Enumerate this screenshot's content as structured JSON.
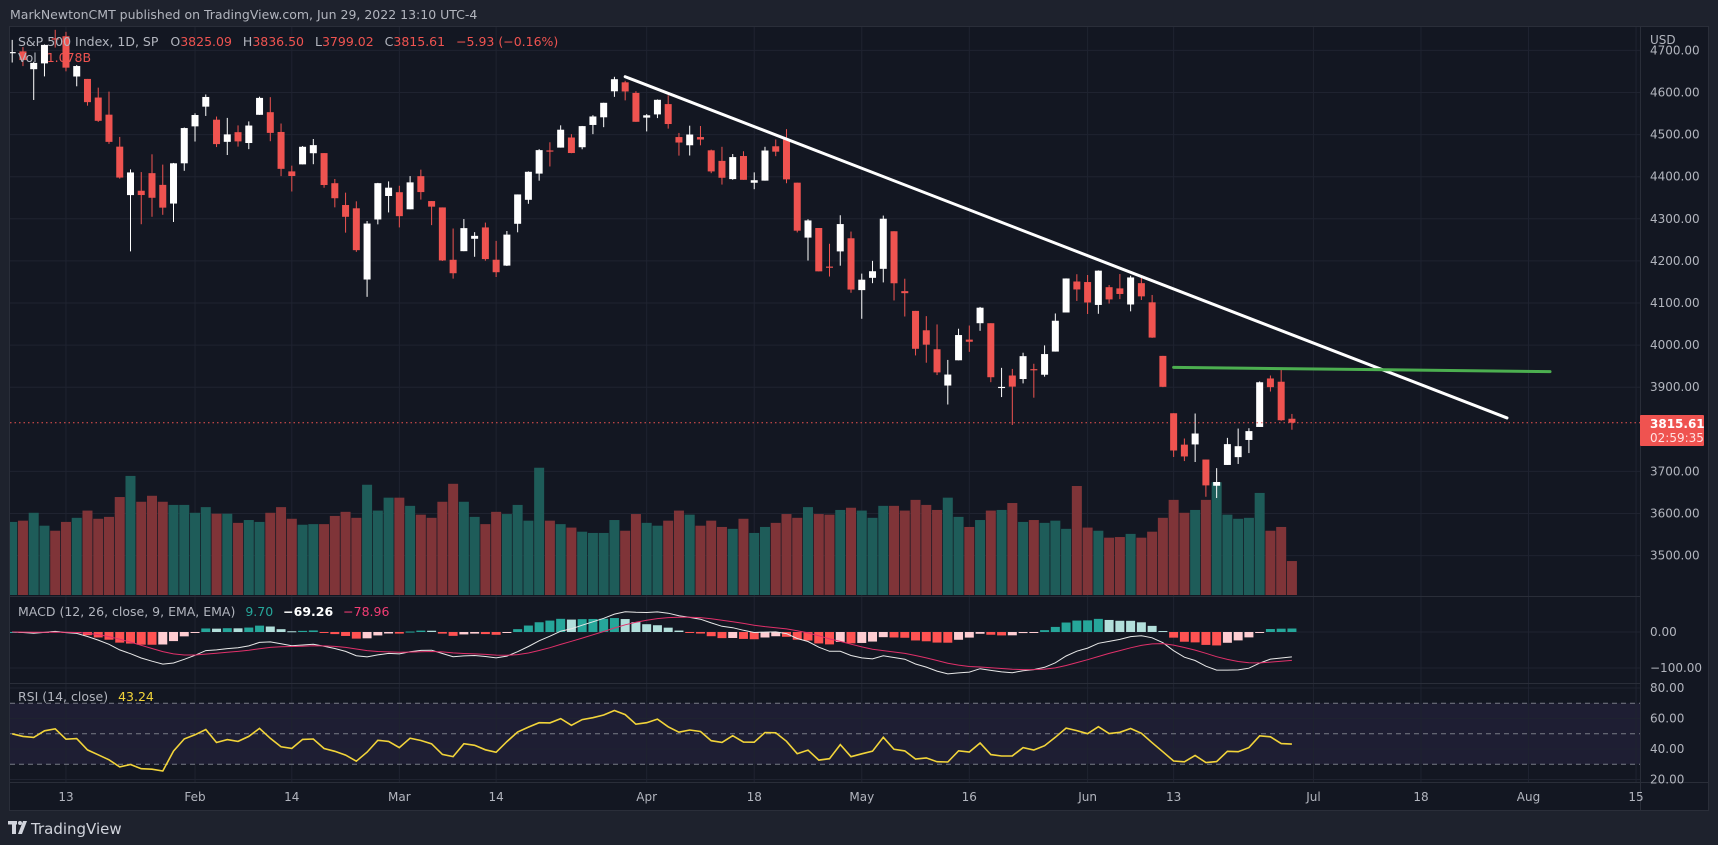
{
  "header": {
    "publisher_line": "MarkNewtonCMT published on TradingView.com, Jun 29, 2022 13:10 UTC-4"
  },
  "legend": {
    "symbol": "S&P 500 Index, 1D, SP",
    "o_label": "O",
    "open": "3825.09",
    "h_label": "H",
    "high": "3836.50",
    "l_label": "L",
    "low": "3799.02",
    "c_label": "C",
    "close": "3815.61",
    "change": "−5.93 (−0.16%)",
    "vol_label": "Vol",
    "vol_value": "1.078B"
  },
  "macd_legend": {
    "title": "MACD (12, 26, close, 9, EMA, EMA)",
    "hist": "9.70",
    "macd": "−69.26",
    "signal": "−78.96"
  },
  "rsi_legend": {
    "title": "RSI (14, close)",
    "value": "43.24"
  },
  "price_axis": {
    "currency": "USD",
    "labels": [
      "4700.00",
      "4600.00",
      "4500.00",
      "4400.00",
      "4300.00",
      "4200.00",
      "4100.00",
      "4000.00",
      "3900.00",
      "3700.00",
      "3600.00",
      "3500.00"
    ],
    "last_price": "3815.61",
    "countdown": "02:59:35"
  },
  "macd_axis": {
    "labels": [
      "0.00",
      "−100.00"
    ]
  },
  "rsi_axis": {
    "labels": [
      "80.00",
      "60.00",
      "40.00",
      "20.00"
    ]
  },
  "time_axis": {
    "ticks": [
      {
        "label": "13",
        "date": "2022-01-13"
      },
      {
        "label": "Feb",
        "date": "2022-02-01"
      },
      {
        "label": "14",
        "date": "2022-02-14"
      },
      {
        "label": "Mar",
        "date": "2022-03-01"
      },
      {
        "label": "14",
        "date": "2022-03-14"
      },
      {
        "label": "Apr",
        "date": "2022-04-01"
      },
      {
        "label": "18",
        "date": "2022-04-18"
      },
      {
        "label": "May",
        "date": "2022-05-02"
      },
      {
        "label": "16",
        "date": "2022-05-16"
      },
      {
        "label": "Jun",
        "date": "2022-06-01"
      },
      {
        "label": "13",
        "date": "2022-06-13"
      },
      {
        "label": "Jul",
        "date": "2022-07-01"
      },
      {
        "label": "18",
        "date": "2022-07-18"
      },
      {
        "label": "Aug",
        "date": "2022-08-01"
      },
      {
        "label": "15",
        "date": "2022-08-15"
      }
    ]
  },
  "footer": {
    "brand": "TradingView"
  },
  "colors": {
    "background": "#131722",
    "frame": "#1e222d",
    "grid": "#1f2330",
    "up_candle": "#ffffff",
    "down_candle": "#ef5350",
    "up_volume": "#1e5c59",
    "down_volume": "#7f3438",
    "macd_line": "#e8e8e8",
    "signal_line": "#e0306a",
    "hist_up_strong": "#26a69a",
    "hist_up_weak": "#b2dfdb",
    "hist_down_strong": "#ff5252",
    "hist_down_weak": "#ffcdd2",
    "rsi_line": "#f2d43a",
    "rsi_band": "#1e1e33",
    "trendline": "#ffffff",
    "support_line": "#4caf50",
    "last_price": "#ef5350"
  },
  "chart_data": {
    "type": "candlestick",
    "title": "S&P 500 Index, 1D, SP",
    "ylabel": "USD",
    "ylim": [
      3450,
      4760
    ],
    "volume_unit": "B",
    "grid": true,
    "columns": [
      "date",
      "open",
      "high",
      "low",
      "close",
      "volume"
    ],
    "ohlcv": [
      [
        "2022-01-06",
        4693.39,
        4725.01,
        4671.26,
        4696.05,
        2.32
      ],
      [
        "2022-01-07",
        4697.66,
        4707.95,
        4662.74,
        4677.03,
        2.36
      ],
      [
        "2022-01-10",
        4655.34,
        4673.02,
        4582.24,
        4670.29,
        2.61
      ],
      [
        "2022-01-11",
        4669.14,
        4714.13,
        4638.27,
        4713.07,
        2.2
      ],
      [
        "2022-01-12",
        4728.59,
        4748.83,
        4706.71,
        4726.35,
        2.04
      ],
      [
        "2022-01-13",
        4733.56,
        4744.13,
        4650.29,
        4659.03,
        2.32
      ],
      [
        "2022-01-14",
        4637.99,
        4665.13,
        4614.75,
        4662.85,
        2.45
      ],
      [
        "2022-01-18",
        4632.24,
        4632.24,
        4568.7,
        4577.11,
        2.68
      ],
      [
        "2022-01-19",
        4588.03,
        4611.55,
        4530.2,
        4532.76,
        2.42
      ],
      [
        "2022-01-20",
        4547.35,
        4602.11,
        4477.95,
        4482.73,
        2.48
      ],
      [
        "2022-01-21",
        4471.38,
        4494.52,
        4395.34,
        4397.94,
        3.11
      ],
      [
        "2022-01-24",
        4356.32,
        4417.35,
        4222.62,
        4410.13,
        3.78
      ],
      [
        "2022-01-25",
        4366.64,
        4411.01,
        4287.11,
        4356.45,
        2.96
      ],
      [
        "2022-01-26",
        4408.43,
        4453.23,
        4304.8,
        4349.93,
        3.15
      ],
      [
        "2022-01-27",
        4380.58,
        4428.74,
        4309.5,
        4326.51,
        2.96
      ],
      [
        "2022-01-28",
        4336.19,
        4432.72,
        4292.46,
        4431.85,
        2.86
      ],
      [
        "2022-01-31",
        4431.79,
        4516.89,
        4414.02,
        4515.55,
        2.86
      ],
      [
        "2022-02-01",
        4519.57,
        4550.49,
        4483.53,
        4546.54,
        2.61
      ],
      [
        "2022-02-02",
        4566.39,
        4595.31,
        4544.32,
        4589.38,
        2.79
      ],
      [
        "2022-02-03",
        4535.41,
        4542.88,
        4470.39,
        4477.44,
        2.58
      ],
      [
        "2022-02-04",
        4482.79,
        4539.66,
        4451.5,
        4500.53,
        2.58
      ],
      [
        "2022-02-07",
        4505.75,
        4521.86,
        4471.47,
        4483.87,
        2.29
      ],
      [
        "2022-02-08",
        4480.02,
        4531.32,
        4465.4,
        4521.54,
        2.38
      ],
      [
        "2022-02-09",
        4547.0,
        4590.03,
        4547.0,
        4587.18,
        2.32
      ],
      [
        "2022-02-10",
        4553.24,
        4588.92,
        4484.31,
        4504.08,
        2.61
      ],
      [
        "2022-02-11",
        4506.27,
        4526.33,
        4401.41,
        4418.64,
        2.79
      ],
      [
        "2022-02-14",
        4412.61,
        4426.22,
        4364.84,
        4401.67,
        2.42
      ],
      [
        "2022-02-15",
        4429.28,
        4472.77,
        4429.28,
        4471.07,
        2.23
      ],
      [
        "2022-02-16",
        4455.75,
        4489.55,
        4429.68,
        4475.01,
        2.25
      ],
      [
        "2022-02-17",
        4456.06,
        4456.06,
        4373.81,
        4380.26,
        2.25
      ],
      [
        "2022-02-18",
        4384.57,
        4394.6,
        4327.22,
        4348.87,
        2.51
      ],
      [
        "2022-02-22",
        4332.74,
        4362.12,
        4267.11,
        4304.76,
        2.64
      ],
      [
        "2022-02-23",
        4324.93,
        4341.51,
        4221.51,
        4225.5,
        2.45
      ],
      [
        "2022-02-24",
        4155.77,
        4294.73,
        4114.65,
        4288.7,
        3.5
      ],
      [
        "2022-02-25",
        4298.38,
        4385.34,
        4286.83,
        4384.65,
        2.68
      ],
      [
        "2022-02-28",
        4354.17,
        4388.84,
        4315.12,
        4373.94,
        3.09
      ],
      [
        "2022-03-01",
        4363.14,
        4378.45,
        4279.54,
        4306.26,
        3.09
      ],
      [
        "2022-03-02",
        4322.56,
        4401.48,
        4322.56,
        4386.54,
        2.83
      ],
      [
        "2022-03-03",
        4401.31,
        4416.78,
        4345.56,
        4363.49,
        2.55
      ],
      [
        "2022-03-04",
        4342.12,
        4342.12,
        4284.98,
        4328.87,
        2.45
      ],
      [
        "2022-03-07",
        4327.01,
        4327.01,
        4199.85,
        4201.09,
        2.96
      ],
      [
        "2022-03-08",
        4202.66,
        4276.94,
        4157.87,
        4170.7,
        3.53
      ],
      [
        "2022-03-09",
        4223.1,
        4299.4,
        4223.1,
        4277.88,
        2.96
      ],
      [
        "2022-03-10",
        4252.55,
        4268.28,
        4209.8,
        4259.52,
        2.48
      ],
      [
        "2022-03-11",
        4279.5,
        4291.01,
        4200.49,
        4204.31,
        2.25
      ],
      [
        "2022-03-14",
        4202.75,
        4247.57,
        4161.72,
        4173.11,
        2.64
      ],
      [
        "2022-03-15",
        4188.82,
        4271.05,
        4187.9,
        4262.45,
        2.57
      ],
      [
        "2022-03-16",
        4288.14,
        4357.86,
        4267.92,
        4357.86,
        2.86
      ],
      [
        "2022-03-17",
        4345.11,
        4412.67,
        4335.65,
        4411.67,
        2.36
      ],
      [
        "2022-03-18",
        4407.34,
        4465.4,
        4390.57,
        4463.12,
        4.04
      ],
      [
        "2022-03-21",
        4462.4,
        4481.75,
        4424.3,
        4461.18,
        2.36
      ],
      [
        "2022-03-22",
        4469.1,
        4522.0,
        4469.1,
        4511.61,
        2.25
      ],
      [
        "2022-03-23",
        4493.1,
        4501.07,
        4455.81,
        4456.24,
        2.14
      ],
      [
        "2022-03-24",
        4469.98,
        4520.58,
        4465.17,
        4520.16,
        2.01
      ],
      [
        "2022-03-25",
        4522.91,
        4546.03,
        4501.07,
        4543.06,
        1.97
      ],
      [
        "2022-03-28",
        4541.09,
        4575.65,
        4517.69,
        4575.52,
        1.97
      ],
      [
        "2022-03-29",
        4602.86,
        4637.3,
        4589.66,
        4631.6,
        2.38
      ],
      [
        "2022-03-30",
        4624.2,
        4627.77,
        4581.32,
        4602.45,
        2.04
      ],
      [
        "2022-03-31",
        4599.02,
        4603.07,
        4530.41,
        4530.41,
        2.57
      ],
      [
        "2022-04-01",
        4540.32,
        4548.7,
        4507.57,
        4545.86,
        2.29
      ],
      [
        "2022-04-04",
        4547.97,
        4583.5,
        4539.21,
        4582.64,
        2.2
      ],
      [
        "2022-04-05",
        4572.45,
        4593.45,
        4514.17,
        4525.12,
        2.36
      ],
      [
        "2022-04-06",
        4494.17,
        4503.94,
        4450.04,
        4481.15,
        2.68
      ],
      [
        "2022-04-07",
        4474.65,
        4521.16,
        4450.3,
        4500.21,
        2.55
      ],
      [
        "2022-04-08",
        4494.15,
        4520.41,
        4474.6,
        4488.28,
        2.2
      ],
      [
        "2022-04-11",
        4462.64,
        4464.35,
        4408.38,
        4412.53,
        2.36
      ],
      [
        "2022-04-12",
        4437.59,
        4471.0,
        4381.34,
        4397.45,
        2.16
      ],
      [
        "2022-04-13",
        4394.3,
        4453.92,
        4392.7,
        4446.59,
        2.1
      ],
      [
        "2022-04-14",
        4449.12,
        4460.46,
        4392.59,
        4392.59,
        2.42
      ],
      [
        "2022-04-18",
        4385.63,
        4410.31,
        4370.3,
        4391.69,
        1.97
      ],
      [
        "2022-04-19",
        4390.63,
        4471.03,
        4390.63,
        4462.21,
        2.16
      ],
      [
        "2022-04-20",
        4472.26,
        4488.29,
        4448.76,
        4459.45,
        2.29
      ],
      [
        "2022-04-21",
        4489.17,
        4512.94,
        4384.47,
        4393.66,
        2.57
      ],
      [
        "2022-04-22",
        4385.83,
        4385.83,
        4267.62,
        4271.78,
        2.45
      ],
      [
        "2022-04-25",
        4255.34,
        4299.02,
        4200.82,
        4296.12,
        2.79
      ],
      [
        "2022-04-26",
        4278.14,
        4278.14,
        4175.04,
        4175.2,
        2.57
      ],
      [
        "2022-04-27",
        4186.52,
        4240.71,
        4162.9,
        4183.96,
        2.55
      ],
      [
        "2022-04-28",
        4222.58,
        4308.45,
        4188.63,
        4287.5,
        2.7
      ],
      [
        "2022-04-29",
        4253.75,
        4269.68,
        4124.28,
        4131.93,
        2.77
      ],
      [
        "2022-05-02",
        4130.61,
        4169.81,
        4062.51,
        4155.38,
        2.68
      ],
      [
        "2022-05-03",
        4159.78,
        4200.1,
        4147.08,
        4175.48,
        2.45
      ],
      [
        "2022-05-04",
        4181.18,
        4307.66,
        4148.91,
        4300.17,
        2.83
      ],
      [
        "2022-05-05",
        4270.43,
        4270.43,
        4106.01,
        4146.87,
        2.83
      ],
      [
        "2022-05-06",
        4128.17,
        4157.69,
        4067.91,
        4123.34,
        2.68
      ],
      [
        "2022-05-09",
        4081.27,
        4081.27,
        3975.48,
        3991.24,
        3.02
      ],
      [
        "2022-05-10",
        4035.18,
        4068.82,
        3958.17,
        4001.05,
        2.86
      ],
      [
        "2022-05-11",
        3990.08,
        4049.09,
        3928.82,
        3935.18,
        2.7
      ],
      [
        "2022-05-12",
        3903.95,
        3964.8,
        3858.87,
        3930.08,
        3.09
      ],
      [
        "2022-05-13",
        3963.9,
        4038.88,
        3963.9,
        4023.89,
        2.48
      ],
      [
        "2022-05-16",
        4013.02,
        4046.46,
        3983.99,
        4008.01,
        2.16
      ],
      [
        "2022-05-17",
        4052.0,
        4090.72,
        4033.93,
        4088.85,
        2.38
      ],
      [
        "2022-05-18",
        4051.98,
        4051.98,
        3911.91,
        3923.68,
        2.68
      ],
      [
        "2022-05-19",
        3899.0,
        3945.96,
        3876.58,
        3900.79,
        2.7
      ],
      [
        "2022-05-20",
        3927.76,
        3943.42,
        3810.32,
        3901.36,
        2.92
      ],
      [
        "2022-05-23",
        3919.42,
        3981.88,
        3909.04,
        3973.75,
        2.32
      ],
      [
        "2022-05-24",
        3942.94,
        3955.68,
        3875.13,
        3941.48,
        2.38
      ],
      [
        "2022-05-25",
        3929.59,
        3999.33,
        3925.03,
        3978.73,
        2.29
      ],
      [
        "2022-05-26",
        3984.6,
        4075.14,
        3984.6,
        4057.84,
        2.36
      ],
      [
        "2022-05-27",
        4077.43,
        4158.49,
        4077.43,
        4158.24,
        2.1
      ],
      [
        "2022-05-31",
        4151.09,
        4168.34,
        4104.88,
        4132.15,
        3.46
      ],
      [
        "2022-06-01",
        4149.78,
        4166.54,
        4073.85,
        4101.23,
        2.14
      ],
      [
        "2022-06-02",
        4095.41,
        4177.51,
        4074.37,
        4176.82,
        2.04
      ],
      [
        "2022-06-03",
        4137.57,
        4142.67,
        4098.67,
        4108.54,
        1.82
      ],
      [
        "2022-06-06",
        4134.72,
        4168.78,
        4109.18,
        4121.43,
        1.84
      ],
      [
        "2022-06-07",
        4096.47,
        4164.86,
        4080.19,
        4160.68,
        1.94
      ],
      [
        "2022-06-08",
        4147.12,
        4160.14,
        4107.2,
        4115.77,
        1.82
      ],
      [
        "2022-06-09",
        4101.65,
        4119.1,
        4017.17,
        4017.82,
        2.01
      ],
      [
        "2022-06-10",
        3974.39,
        3974.39,
        3900.16,
        3900.86,
        2.45
      ],
      [
        "2022-06-13",
        3838.15,
        3838.15,
        3734.3,
        3749.63,
        3.02
      ],
      [
        "2022-06-14",
        3763.52,
        3778.18,
        3724.57,
        3735.48,
        2.61
      ],
      [
        "2022-06-15",
        3764.05,
        3837.56,
        3722.3,
        3789.99,
        2.7
      ],
      [
        "2022-06-16",
        3728.18,
        3728.18,
        3639.77,
        3666.77,
        3.02
      ],
      [
        "2022-06-17",
        3665.9,
        3707.71,
        3636.87,
        3674.84,
        3.58
      ],
      [
        "2022-06-21",
        3715.31,
        3779.65,
        3715.31,
        3764.79,
        2.55
      ],
      [
        "2022-06-22",
        3733.89,
        3801.79,
        3717.69,
        3759.89,
        2.42
      ],
      [
        "2022-06-23",
        3774.71,
        3802.58,
        3743.52,
        3795.73,
        2.45
      ],
      [
        "2022-06-24",
        3805.58,
        3913.65,
        3805.58,
        3911.74,
        3.24
      ],
      [
        "2022-06-27",
        3920.76,
        3927.72,
        3889.66,
        3900.11,
        2.04
      ],
      [
        "2022-06-28",
        3913.0,
        3945.86,
        3820.14,
        3821.55,
        2.16
      ],
      [
        "2022-06-29",
        3825.09,
        3836.5,
        3799.02,
        3815.61,
        1.078
      ]
    ],
    "indicators": {
      "macd": {
        "fast": 12,
        "slow": 26,
        "signal": 9,
        "last_hist": 9.7,
        "last_macd": -69.26,
        "last_signal": -78.96,
        "ylim": [
          -140,
          100
        ]
      },
      "rsi": {
        "length": 14,
        "last": 43.24,
        "levels": [
          70,
          50,
          30
        ],
        "ylim": [
          17,
          83
        ]
      }
    },
    "drawings": [
      {
        "kind": "trendline",
        "color": "#ffffff",
        "from": {
          "date": "2022-03-30",
          "price": 4637.5
        },
        "to": {
          "date": "2022-07-28",
          "price": 3827
        }
      },
      {
        "kind": "horizontal-segment",
        "color": "#4caf50",
        "from": {
          "date": "2022-06-13",
          "price": 3947
        },
        "to": {
          "date": "2022-08-03",
          "price": 3937
        }
      }
    ],
    "last_price_line": 3815.61
  }
}
